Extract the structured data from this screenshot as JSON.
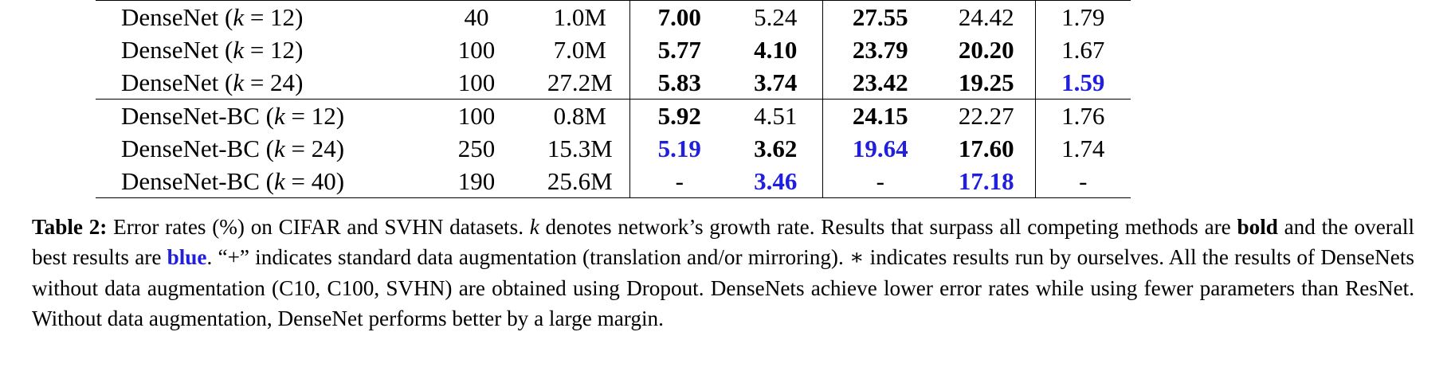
{
  "table": {
    "rows": [
      {
        "model": "DenseNet",
        "k_eq": "= 12",
        "depth": "40",
        "params": "1.0M",
        "c10": "7.00",
        "c10_plus": "5.24",
        "c100": "27.55",
        "c100_plus": "24.42",
        "svhn": "1.79",
        "styles": {
          "c10": "bold",
          "c10_plus": "",
          "c100": "bold",
          "c100_plus": "",
          "svhn": ""
        }
      },
      {
        "model": "DenseNet",
        "k_eq": "= 12",
        "depth": "100",
        "params": "7.0M",
        "c10": "5.77",
        "c10_plus": "4.10",
        "c100": "23.79",
        "c100_plus": "20.20",
        "svhn": "1.67",
        "styles": {
          "c10": "bold",
          "c10_plus": "bold",
          "c100": "bold",
          "c100_plus": "bold",
          "svhn": ""
        }
      },
      {
        "model": "DenseNet",
        "k_eq": "= 24",
        "depth": "100",
        "params": "27.2M",
        "c10": "5.83",
        "c10_plus": "3.74",
        "c100": "23.42",
        "c100_plus": "19.25",
        "svhn": "1.59",
        "styles": {
          "c10": "bold",
          "c10_plus": "bold",
          "c100": "bold",
          "c100_plus": "bold",
          "svhn": "best"
        }
      },
      {
        "model": "DenseNet-BC",
        "k_eq": "= 12",
        "depth": "100",
        "params": "0.8M",
        "c10": "5.92",
        "c10_plus": "4.51",
        "c100": "24.15",
        "c100_plus": "22.27",
        "svhn": "1.76",
        "styles": {
          "c10": "bold",
          "c10_plus": "",
          "c100": "bold",
          "c100_plus": "",
          "svhn": ""
        }
      },
      {
        "model": "DenseNet-BC",
        "k_eq": "= 24",
        "depth": "250",
        "params": "15.3M",
        "c10": "5.19",
        "c10_plus": "3.62",
        "c100": "19.64",
        "c100_plus": "17.60",
        "svhn": "1.74",
        "styles": {
          "c10": "best",
          "c10_plus": "bold",
          "c100": "best",
          "c100_plus": "bold",
          "svhn": ""
        }
      },
      {
        "model": "DenseNet-BC",
        "k_eq": "= 40",
        "depth": "190",
        "params": "25.6M",
        "c10": "-",
        "c10_plus": "3.46",
        "c100": "-",
        "c100_plus": "17.18",
        "svhn": "-",
        "styles": {
          "c10": "",
          "c10_plus": "best",
          "c100": "",
          "c100_plus": "best",
          "svhn": ""
        }
      }
    ]
  },
  "caption": {
    "label": "Table 2:",
    "part1": " Error rates (%) on CIFAR and SVHN datasets. ",
    "k": "k",
    "part2": " denotes network’s growth rate. Results that surpass all competing methods are ",
    "bold_word": "bold",
    "part3": " and the overall best results are ",
    "blue_word": "blue",
    "part4": ". “+” indicates standard data augmentation (translation and/or mirroring). ∗ indicates results run by ourselves. All the results of DenseNets without data augmentation (C10, C100, SVHN) are obtained using Dropout. DenseNets achieve lower error rates while using fewer parameters than ResNet. Without data augmentation, DenseNet performs better by a large margin."
  },
  "colors": {
    "best": "#1f1fdd",
    "text": "#000000",
    "background": "#ffffff"
  }
}
